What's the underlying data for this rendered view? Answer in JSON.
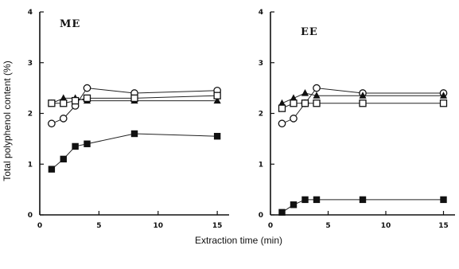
{
  "chart_data": {
    "type": "line",
    "ylabel": "Total polyphenol content (%)",
    "xlabel": "Extraction time (min)",
    "xlim": [
      0,
      16
    ],
    "ylim": [
      0,
      4
    ],
    "x_ticks": [
      0,
      5,
      10,
      15
    ],
    "y_ticks": [
      0,
      1,
      2,
      3,
      4
    ],
    "grid": false,
    "panels": [
      {
        "label": "ME",
        "series": [
          {
            "marker": "open-circle",
            "points": [
              [
                1,
                1.8
              ],
              [
                2,
                1.9
              ],
              [
                3,
                2.15
              ],
              [
                4,
                2.5
              ],
              [
                8,
                2.4
              ],
              [
                15,
                2.45
              ]
            ]
          },
          {
            "marker": "filled-triangle",
            "points": [
              [
                1,
                2.2
              ],
              [
                2,
                2.3
              ],
              [
                3,
                2.3
              ],
              [
                4,
                2.25
              ],
              [
                8,
                2.25
              ],
              [
                15,
                2.25
              ]
            ]
          },
          {
            "marker": "open-square",
            "points": [
              [
                1,
                2.2
              ],
              [
                2,
                2.2
              ],
              [
                3,
                2.25
              ],
              [
                4,
                2.3
              ],
              [
                8,
                2.3
              ],
              [
                15,
                2.35
              ]
            ]
          },
          {
            "marker": "filled-square",
            "points": [
              [
                1,
                0.9
              ],
              [
                2,
                1.1
              ],
              [
                3,
                1.35
              ],
              [
                4,
                1.4
              ],
              [
                8,
                1.6
              ],
              [
                15,
                1.55
              ]
            ]
          }
        ]
      },
      {
        "label": "EE",
        "series": [
          {
            "marker": "open-circle",
            "points": [
              [
                1,
                1.8
              ],
              [
                2,
                1.9
              ],
              [
                3,
                2.2
              ],
              [
                4,
                2.5
              ],
              [
                8,
                2.4
              ],
              [
                15,
                2.4
              ]
            ]
          },
          {
            "marker": "filled-triangle",
            "points": [
              [
                1,
                2.2
              ],
              [
                2,
                2.3
              ],
              [
                3,
                2.4
              ],
              [
                4,
                2.35
              ],
              [
                8,
                2.35
              ],
              [
                15,
                2.35
              ]
            ]
          },
          {
            "marker": "open-square",
            "points": [
              [
                1,
                2.1
              ],
              [
                2,
                2.2
              ],
              [
                3,
                2.2
              ],
              [
                4,
                2.2
              ],
              [
                8,
                2.2
              ],
              [
                15,
                2.2
              ]
            ]
          },
          {
            "marker": "filled-square",
            "points": [
              [
                1,
                0.05
              ],
              [
                2,
                0.2
              ],
              [
                3,
                0.3
              ],
              [
                4,
                0.3
              ],
              [
                8,
                0.3
              ],
              [
                15,
                0.3
              ]
            ]
          }
        ]
      }
    ]
  }
}
